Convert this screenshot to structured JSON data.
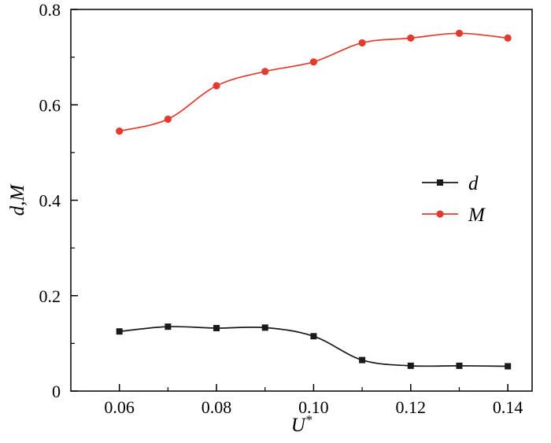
{
  "figure": {
    "background": "#ffffff"
  },
  "chart_data": {
    "type": "line",
    "x": [
      0.06,
      0.07,
      0.08,
      0.09,
      0.1,
      0.11,
      0.12,
      0.13,
      0.14
    ],
    "series": [
      {
        "name": "d",
        "marker": "square",
        "color": "#1a1a1a",
        "values": [
          0.125,
          0.135,
          0.132,
          0.133,
          0.115,
          0.065,
          0.053,
          0.053,
          0.052
        ]
      },
      {
        "name": "M",
        "marker": "circle",
        "color": "#e23b2e",
        "values": [
          0.545,
          0.57,
          0.64,
          0.67,
          0.69,
          0.73,
          0.74,
          0.75,
          0.74
        ]
      }
    ],
    "title": "",
    "xlabel": "U*",
    "ylabel": "d,M",
    "xlim": [
      0.05,
      0.145
    ],
    "ylim": [
      0,
      0.8
    ],
    "x_tick_values": [
      0.06,
      0.08,
      0.1,
      0.12,
      0.14
    ],
    "x_tick_labels": [
      "0.06",
      "0.08",
      "0.10",
      "0.12",
      "0.14"
    ],
    "x_minor_ticks": [
      0.07,
      0.09,
      0.11,
      0.13
    ],
    "y_tick_values": [
      0,
      0.2,
      0.4,
      0.6,
      0.8
    ],
    "y_tick_labels": [
      "0",
      "0.2",
      "0.4",
      "0.6",
      "0.8"
    ],
    "y_minor_ticks": [
      0.1,
      0.3,
      0.5,
      0.7
    ],
    "grid": false,
    "legend": {
      "position": "right-center",
      "entries": [
        "d",
        "M"
      ]
    },
    "axis_color": "#000000"
  }
}
